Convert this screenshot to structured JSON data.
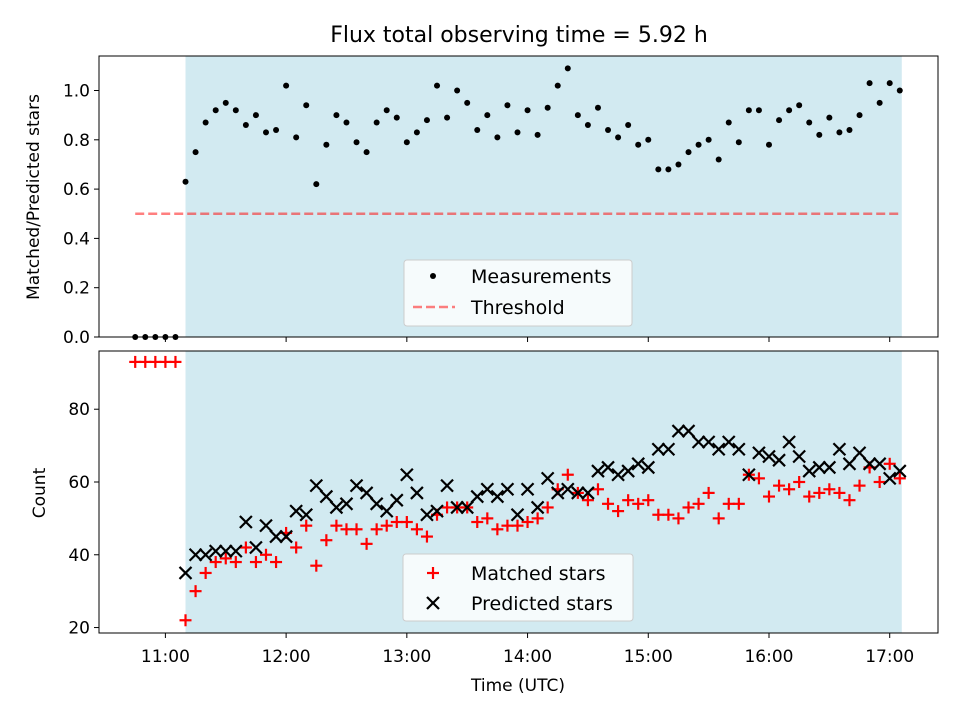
{
  "figure": {
    "title": "Flux total observing time = 5.92 h"
  },
  "colors": {
    "shade": "#add8e6",
    "measurements": "#000000",
    "threshold": "#ff0000",
    "matched": "#ff0000",
    "predicted": "#000000"
  },
  "chart_data": [
    {
      "type": "scatter",
      "ylabel": "Matched/Predicted stars",
      "xlim": [
        "10:27",
        "17:24"
      ],
      "ylim": [
        0,
        1.14
      ],
      "yticks": [
        "0.0",
        "0.2",
        "0.4",
        "0.6",
        "0.8",
        "1.0"
      ],
      "shaded_region": [
        "11:10",
        "17:06"
      ],
      "threshold": {
        "start": "10:45",
        "end": "17:05",
        "value": 0.5
      },
      "legend": {
        "placement": "lower center",
        "entries": [
          "Measurements",
          "Threshold"
        ]
      },
      "series": [
        {
          "name": "Measurements",
          "marker": "dot",
          "x": [
            "10:45",
            "10:50",
            "10:55",
            "11:00",
            "11:05",
            "11:10",
            "11:15",
            "11:20",
            "11:25",
            "11:30",
            "11:35",
            "11:40",
            "11:45",
            "11:50",
            "11:55",
            "12:00",
            "12:05",
            "12:10",
            "12:15",
            "12:20",
            "12:25",
            "12:30",
            "12:35",
            "12:40",
            "12:45",
            "12:50",
            "12:55",
            "13:00",
            "13:05",
            "13:10",
            "13:15",
            "13:20",
            "13:25",
            "13:30",
            "13:35",
            "13:40",
            "13:45",
            "13:50",
            "13:55",
            "14:00",
            "14:05",
            "14:10",
            "14:15",
            "14:20",
            "14:25",
            "14:30",
            "14:35",
            "14:40",
            "14:45",
            "14:50",
            "14:55",
            "15:00",
            "15:05",
            "15:10",
            "15:15",
            "15:20",
            "15:25",
            "15:30",
            "15:35",
            "15:40",
            "15:45",
            "15:50",
            "15:55",
            "16:00",
            "16:05",
            "16:10",
            "16:15",
            "16:20",
            "16:25",
            "16:30",
            "16:35",
            "16:40",
            "16:45",
            "16:50",
            "16:55",
            "17:00",
            "17:05"
          ],
          "y": [
            0,
            0,
            0,
            0,
            0,
            0.63,
            0.75,
            0.87,
            0.92,
            0.95,
            0.92,
            0.86,
            0.9,
            0.83,
            0.84,
            1.02,
            0.81,
            0.94,
            0.62,
            0.78,
            0.9,
            0.87,
            0.79,
            0.75,
            0.87,
            0.92,
            0.89,
            0.79,
            0.83,
            0.88,
            1.02,
            0.89,
            1.0,
            0.95,
            0.84,
            0.9,
            0.81,
            0.94,
            0.83,
            0.92,
            0.82,
            0.93,
            1.02,
            1.09,
            0.9,
            0.86,
            0.93,
            0.84,
            0.81,
            0.86,
            0.78,
            0.8,
            0.68,
            0.68,
            0.7,
            0.75,
            0.78,
            0.8,
            0.72,
            0.87,
            0.79,
            0.92,
            0.92,
            0.78,
            0.88,
            0.92,
            0.94,
            0.87,
            0.82,
            0.89,
            0.83,
            0.84,
            0.9,
            1.03,
            0.95,
            1.03,
            1.0
          ]
        }
      ]
    },
    {
      "type": "scatter",
      "xlabel": "Time (UTC)",
      "ylabel": "Count",
      "xlim": [
        "10:27",
        "17:24"
      ],
      "ylim": [
        18.5,
        96
      ],
      "xticks": [
        "11:00",
        "12:00",
        "13:00",
        "14:00",
        "15:00",
        "16:00",
        "17:00"
      ],
      "yticks": [
        "20",
        "40",
        "60",
        "80"
      ],
      "shaded_region": [
        "11:10",
        "17:06"
      ],
      "legend": {
        "placement": "lower center",
        "entries": [
          "Matched stars",
          "Predicted stars"
        ]
      },
      "series": [
        {
          "name": "Matched stars",
          "marker": "plus",
          "x": [
            "10:45",
            "10:50",
            "10:55",
            "11:00",
            "11:05",
            "11:10",
            "11:15",
            "11:20",
            "11:25",
            "11:30",
            "11:35",
            "11:40",
            "11:45",
            "11:50",
            "11:55",
            "12:00",
            "12:05",
            "12:10",
            "12:15",
            "12:20",
            "12:25",
            "12:30",
            "12:35",
            "12:40",
            "12:45",
            "12:50",
            "12:55",
            "13:00",
            "13:05",
            "13:10",
            "13:15",
            "13:20",
            "13:25",
            "13:30",
            "13:35",
            "13:40",
            "13:45",
            "13:50",
            "13:55",
            "14:00",
            "14:05",
            "14:10",
            "14:15",
            "14:20",
            "14:25",
            "14:30",
            "14:35",
            "14:40",
            "14:45",
            "14:50",
            "14:55",
            "15:00",
            "15:05",
            "15:10",
            "15:15",
            "15:20",
            "15:25",
            "15:30",
            "15:35",
            "15:40",
            "15:45",
            "15:50",
            "15:55",
            "16:00",
            "16:05",
            "16:10",
            "16:15",
            "16:20",
            "16:25",
            "16:30",
            "16:35",
            "16:40",
            "16:45",
            "16:50",
            "16:55",
            "17:00",
            "17:05"
          ],
          "y": [
            93,
            93,
            93,
            93,
            93,
            22,
            30,
            35,
            38,
            39,
            38,
            42,
            38,
            40,
            38,
            46,
            42,
            48,
            37,
            44,
            48,
            47,
            47,
            43,
            47,
            48,
            49,
            49,
            47,
            45,
            51,
            53,
            53,
            53,
            49,
            50,
            47,
            48,
            48,
            49,
            50,
            53,
            58,
            62,
            57,
            55,
            58,
            54,
            52,
            55,
            54,
            55,
            51,
            51,
            50,
            53,
            54,
            57,
            50,
            54,
            54,
            62,
            61,
            56,
            59,
            58,
            60,
            56,
            57,
            58,
            57,
            55,
            59,
            64,
            60,
            65,
            61
          ]
        },
        {
          "name": "Predicted stars",
          "marker": "x",
          "x": [
            "11:10",
            "11:15",
            "11:20",
            "11:25",
            "11:30",
            "11:35",
            "11:40",
            "11:45",
            "11:50",
            "11:55",
            "12:00",
            "12:05",
            "12:10",
            "12:15",
            "12:20",
            "12:25",
            "12:30",
            "12:35",
            "12:40",
            "12:45",
            "12:50",
            "12:55",
            "13:00",
            "13:05",
            "13:10",
            "13:15",
            "13:20",
            "13:25",
            "13:30",
            "13:35",
            "13:40",
            "13:45",
            "13:50",
            "13:55",
            "14:00",
            "14:05",
            "14:10",
            "14:15",
            "14:20",
            "14:25",
            "14:30",
            "14:35",
            "14:40",
            "14:45",
            "14:50",
            "14:55",
            "15:00",
            "15:05",
            "15:10",
            "15:15",
            "15:20",
            "15:25",
            "15:30",
            "15:35",
            "15:40",
            "15:45",
            "15:50",
            "15:55",
            "16:00",
            "16:05",
            "16:10",
            "16:15",
            "16:20",
            "16:25",
            "16:30",
            "16:35",
            "16:40",
            "16:45",
            "16:50",
            "16:55",
            "17:00",
            "17:05"
          ],
          "y": [
            35,
            40,
            40,
            41,
            41,
            41,
            49,
            42,
            48,
            45,
            45,
            52,
            51,
            59,
            56,
            53,
            54,
            59,
            57,
            54,
            52,
            55,
            62,
            57,
            51,
            52,
            59,
            53,
            53,
            56,
            58,
            56,
            58,
            51,
            58,
            53,
            61,
            57,
            58,
            57,
            57,
            63,
            64,
            62,
            63,
            65,
            64,
            69,
            69,
            74,
            74,
            71,
            71,
            69,
            71,
            69,
            62,
            68,
            67,
            66,
            71,
            67,
            63,
            64,
            64,
            69,
            65,
            68,
            65,
            65,
            61,
            63
          ]
        }
      ]
    }
  ]
}
